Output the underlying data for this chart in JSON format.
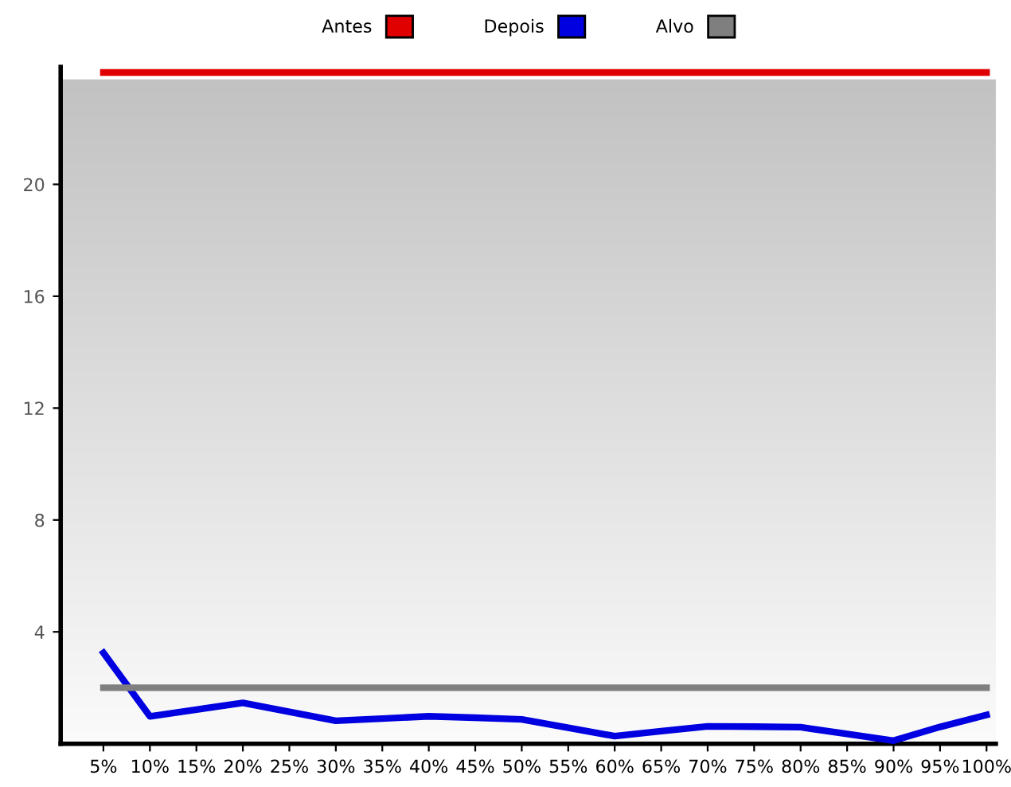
{
  "chart_data": {
    "type": "line",
    "categories": [
      "5%",
      "10%",
      "15%",
      "20%",
      "25%",
      "30%",
      "35%",
      "40%",
      "45%",
      "50%",
      "55%",
      "60%",
      "65%",
      "70%",
      "75%",
      "80%",
      "85%",
      "90%",
      "95%",
      "100%"
    ],
    "series": [
      {
        "name": "Antes",
        "color": "#e00000",
        "values": [
          24,
          24,
          24,
          24,
          24,
          24,
          24,
          24,
          24,
          24,
          24,
          24,
          24,
          24,
          24,
          24,
          24,
          24,
          24,
          24
        ]
      },
      {
        "name": "Depois",
        "color": "#0000e0",
        "values": [
          3.25,
          0.98,
          1.22,
          1.46,
          1.14,
          0.82,
          0.9,
          0.98,
          0.93,
          0.87,
          0.57,
          0.27,
          0.45,
          0.62,
          0.61,
          0.59,
          0.35,
          0.11,
          0.6,
          1.03
        ]
      },
      {
        "name": "Alvo",
        "color": "#7f7f7f",
        "values": [
          2,
          2,
          2,
          2,
          2,
          2,
          2,
          2,
          2,
          2,
          2,
          2,
          2,
          2,
          2,
          2,
          2,
          2,
          2,
          2
        ]
      }
    ],
    "ylim": [
      0,
      24.2
    ],
    "yticks": [
      4,
      8,
      12,
      16,
      20
    ],
    "grid": false,
    "legend": "top",
    "marker": "none",
    "line_style": "solid"
  }
}
